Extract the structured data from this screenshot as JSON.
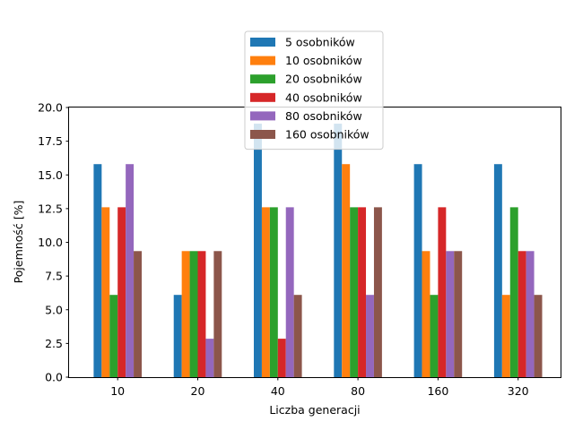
{
  "chart_data": {
    "type": "bar",
    "title": "",
    "xlabel": "Liczba generacji",
    "ylabel": "Pojemność [%]",
    "categories": [
      "10",
      "20",
      "40",
      "80",
      "160",
      "320"
    ],
    "ylim": [
      0,
      20
    ],
    "yticks": [
      0.0,
      2.5,
      5.0,
      7.5,
      10.0,
      12.5,
      15.0,
      17.5,
      20.0
    ],
    "ytick_labels": [
      "0.0",
      "2.5",
      "5.0",
      "7.5",
      "10.0",
      "12.5",
      "15.0",
      "17.5",
      "20.0"
    ],
    "grid": false,
    "legend_position": "top-center",
    "series": [
      {
        "name": "5 osobników",
        "color": "#1f77b4",
        "values": [
          15.8,
          6.1,
          18.8,
          18.8,
          15.8,
          15.8
        ]
      },
      {
        "name": "10 osobników",
        "color": "#ff7f0e",
        "values": [
          12.6,
          9.35,
          12.6,
          15.8,
          9.35,
          6.1
        ]
      },
      {
        "name": "20 osobników",
        "color": "#2ca02c",
        "values": [
          6.1,
          9.35,
          12.6,
          12.6,
          6.1,
          12.6
        ]
      },
      {
        "name": "40 osobników",
        "color": "#d62728",
        "values": [
          12.6,
          9.35,
          2.85,
          12.6,
          12.6,
          9.35
        ]
      },
      {
        "name": "80 osobników",
        "color": "#9467bd",
        "values": [
          15.8,
          2.85,
          12.6,
          6.1,
          9.35,
          9.35
        ]
      },
      {
        "name": "160 osobników",
        "color": "#8c564b",
        "values": [
          9.35,
          9.35,
          6.1,
          12.6,
          9.35,
          6.1
        ]
      }
    ]
  }
}
